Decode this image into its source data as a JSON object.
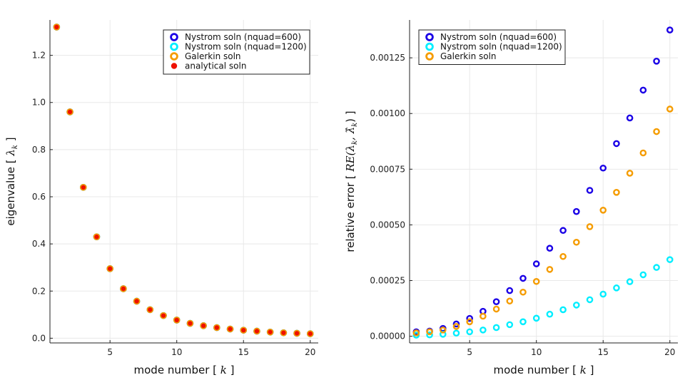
{
  "chart_data": [
    {
      "type": "scatter",
      "xlabel": "mode number [ k ]",
      "ylabel": "eigenvalue [ λ_k ]",
      "xlim": [
        0.5,
        20.6
      ],
      "ylim": [
        -0.02,
        1.35
      ],
      "xticks": [
        "5",
        "10",
        "15",
        "20"
      ],
      "xtick_values": [
        5,
        10,
        15,
        20
      ],
      "yticks": [
        "0.0",
        "0.2",
        "0.4",
        "0.6",
        "0.8",
        "1.0",
        "1.2"
      ],
      "ytick_values": [
        0,
        0.2,
        0.4,
        0.6,
        0.8,
        1.0,
        1.2
      ],
      "grid": true,
      "legend_position": "top-right",
      "x": [
        1,
        2,
        3,
        4,
        5,
        6,
        7,
        8,
        9,
        10,
        11,
        12,
        13,
        14,
        15,
        16,
        17,
        18,
        19,
        20
      ],
      "series": [
        {
          "name": "Nystrom soln (nquad=600)",
          "color": "#1a00e6",
          "marker": "ring",
          "values": [
            1.32,
            0.96,
            0.64,
            0.43,
            0.295,
            0.21,
            0.157,
            0.121,
            0.096,
            0.077,
            0.063,
            0.053,
            0.045,
            0.039,
            0.034,
            0.03,
            0.026,
            0.023,
            0.021,
            0.019
          ]
        },
        {
          "name": "Nystrom soln (nquad=1200)",
          "color": "#00eeff",
          "marker": "ring",
          "values": [
            1.32,
            0.96,
            0.64,
            0.43,
            0.295,
            0.21,
            0.157,
            0.121,
            0.096,
            0.077,
            0.063,
            0.053,
            0.045,
            0.039,
            0.034,
            0.03,
            0.026,
            0.023,
            0.021,
            0.019
          ]
        },
        {
          "name": "Galerkin soln",
          "color": "#f59c00",
          "marker": "ring",
          "values": [
            1.32,
            0.96,
            0.64,
            0.43,
            0.295,
            0.21,
            0.157,
            0.121,
            0.096,
            0.077,
            0.063,
            0.053,
            0.045,
            0.039,
            0.034,
            0.03,
            0.026,
            0.023,
            0.021,
            0.019
          ]
        },
        {
          "name": "analytical soln",
          "color": "#ee1100",
          "marker": "dot",
          "values": [
            1.32,
            0.96,
            0.64,
            0.43,
            0.295,
            0.21,
            0.157,
            0.121,
            0.096,
            0.077,
            0.063,
            0.053,
            0.045,
            0.039,
            0.034,
            0.03,
            0.026,
            0.023,
            0.021,
            0.019
          ]
        }
      ]
    },
    {
      "type": "scatter",
      "xlabel": "mode number [ k ]",
      "ylabel": "relative error [ RE(λ_k, λ̂_k) ]",
      "xlim": [
        0.5,
        20.6
      ],
      "ylim": [
        -3e-05,
        0.00142
      ],
      "xticks": [
        "5",
        "10",
        "15",
        "20"
      ],
      "xtick_values": [
        5,
        10,
        15,
        20
      ],
      "yticks": [
        "0.00000",
        "0.00025",
        "0.00050",
        "0.00075",
        "0.00100",
        "0.00125"
      ],
      "ytick_values": [
        0,
        0.00025,
        0.0005,
        0.00075,
        0.001,
        0.00125
      ],
      "grid": true,
      "legend_position": "top-left",
      "x": [
        1,
        2,
        3,
        4,
        5,
        6,
        7,
        8,
        9,
        10,
        11,
        12,
        13,
        14,
        15,
        16,
        17,
        18,
        19,
        20
      ],
      "series": [
        {
          "name": "Nystrom soln (nquad=600)",
          "color": "#1a00e6",
          "marker": "ring",
          "values": [
            2e-05,
            2.3e-05,
            3.5e-05,
            5.5e-05,
            8e-05,
            0.000112,
            0.000155,
            0.000205,
            0.00026,
            0.000325,
            0.000395,
            0.000475,
            0.00056,
            0.000655,
            0.000755,
            0.000865,
            0.00098,
            0.001105,
            0.001235,
            0.001375
          ]
        },
        {
          "name": "Nystrom soln (nquad=1200)",
          "color": "#00eeff",
          "marker": "ring",
          "values": [
            5e-06,
            6e-06,
            9e-06,
            1.4e-05,
            2e-05,
            2.8e-05,
            3.9e-05,
            5.2e-05,
            6.5e-05,
            8.1e-05,
            9.9e-05,
            0.000119,
            0.00014,
            0.000164,
            0.000189,
            0.000217,
            0.000245,
            0.000276,
            0.000309,
            0.000344
          ]
        },
        {
          "name": "Galerkin soln",
          "color": "#f59c00",
          "marker": "ring",
          "values": [
            1.5e-05,
            2e-05,
            2.8e-05,
            4.4e-05,
            6.5e-05,
            9e-05,
            0.000122,
            0.000158,
            0.000198,
            0.000246,
            0.0003,
            0.000358,
            0.000422,
            0.000492,
            0.000566,
            0.000646,
            0.000732,
            0.000823,
            0.000919,
            0.00102
          ]
        }
      ]
    }
  ]
}
